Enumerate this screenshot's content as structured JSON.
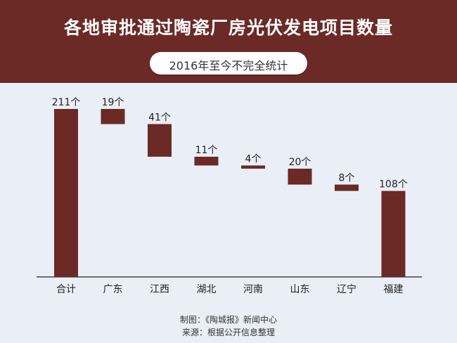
{
  "header": {
    "title": "各地审批通过陶瓷厂房光伏发电项目数量",
    "subtitle": "2016年至今不完全统计"
  },
  "footer": {
    "credit": "制图：《陶城报》新闻中心",
    "source": "来源：根据公开信息整理"
  },
  "colors": {
    "header_bg": "#6b2a26",
    "bar": "#6b2a26",
    "background": "#eaeef7"
  },
  "chart_data": {
    "type": "bar",
    "subtype": "waterfall",
    "title": "各地审批通过陶瓷厂房光伏发电项目数量",
    "subtitle": "2016年至今不完全统计",
    "unit": "个",
    "categories": [
      "合计",
      "广东",
      "江西",
      "湖北",
      "河南",
      "山东",
      "辽宁",
      "福建"
    ],
    "values": [
      211,
      19,
      41,
      11,
      4,
      20,
      8,
      108
    ],
    "value_labels": [
      "211个",
      "19个",
      "41个",
      "11个",
      "4个",
      "20个",
      "8个",
      "108个"
    ],
    "total_category": "合计",
    "ylim": [
      0,
      211
    ],
    "grid": false,
    "legend": "none"
  }
}
